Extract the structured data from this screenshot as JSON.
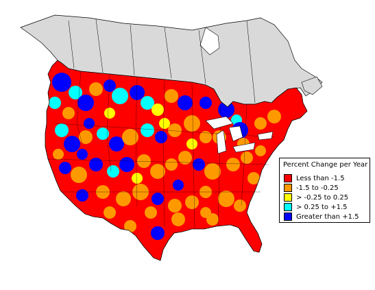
{
  "map": {
    "colors": {
      "canada_land": "#d9d9d9",
      "outline": "#000000",
      "water": "#ffffff"
    }
  },
  "legend": {
    "title": "Percent Change per Year",
    "items": [
      {
        "label": "Less than -1.5",
        "color": "#ff0000"
      },
      {
        "label": "-1.5 to -0.25",
        "color": "#ff9900"
      },
      {
        "label": "> -0.25 to 0.25",
        "color": "#ffff00"
      },
      {
        "label": "> 0.25 to +1.5",
        "color": "#00ffff"
      },
      {
        "label": "Greater than +1.5",
        "color": "#0000ff"
      }
    ]
  }
}
